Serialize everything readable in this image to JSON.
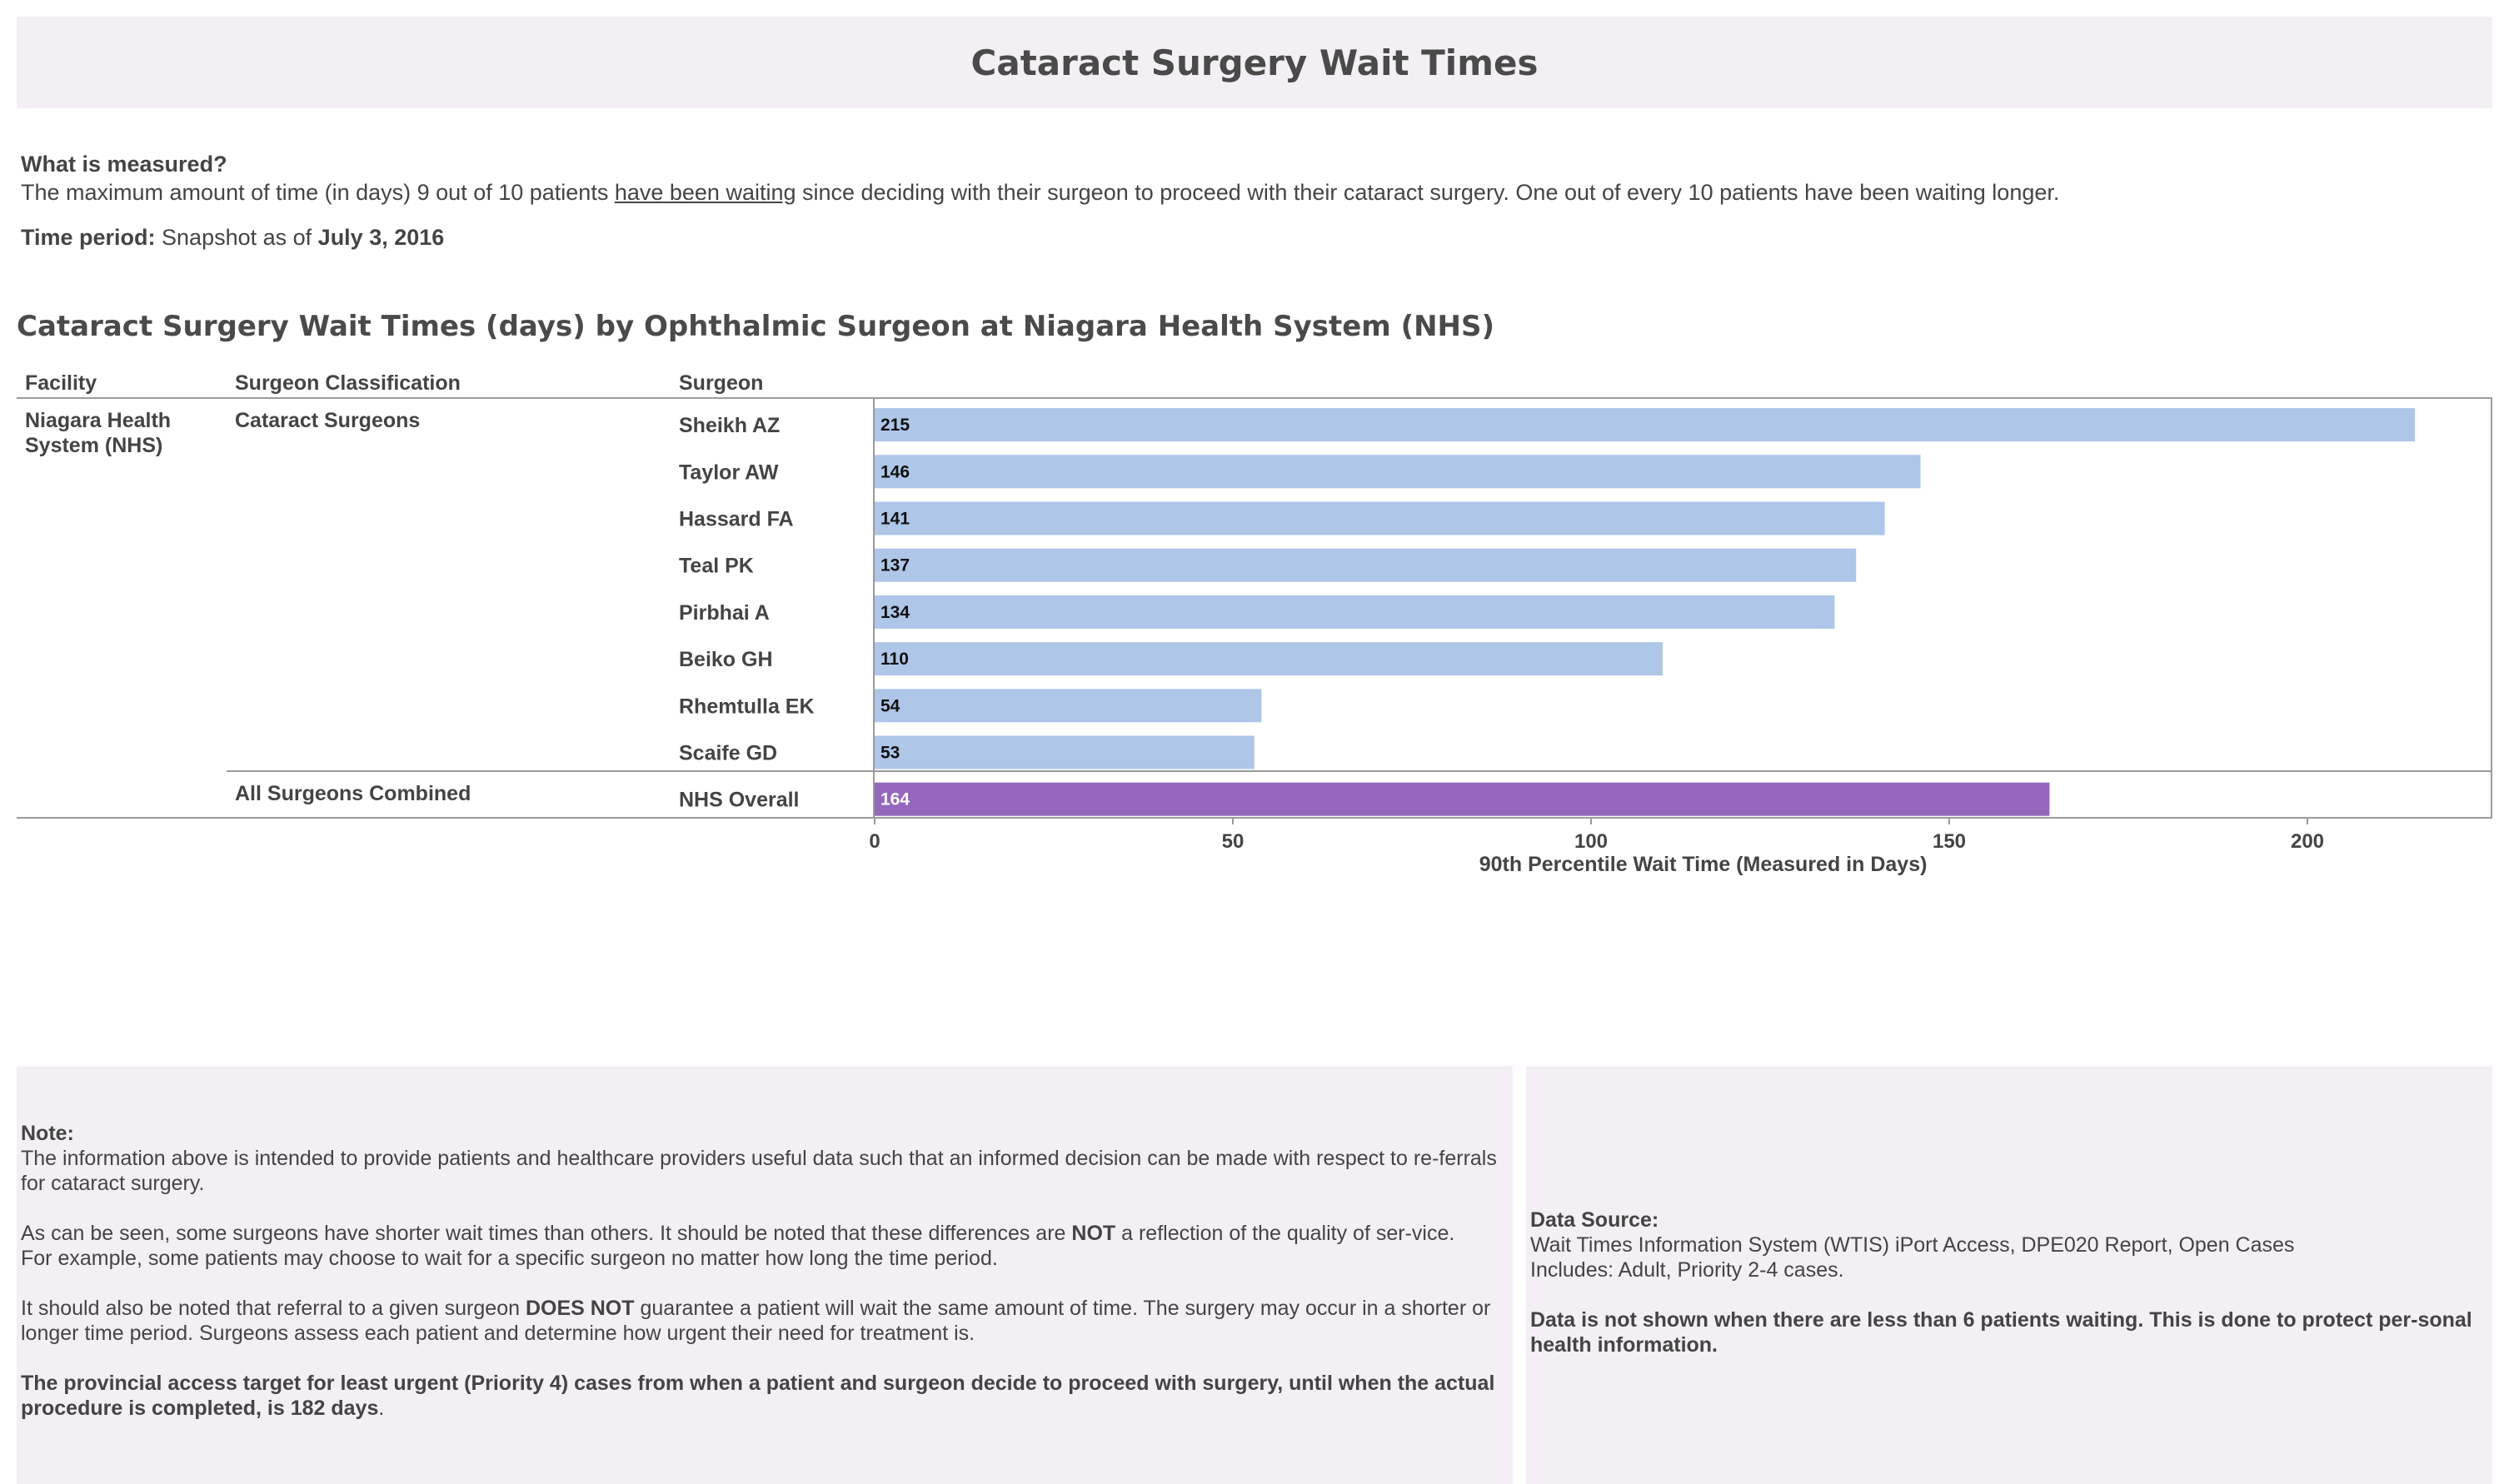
{
  "title": "Cataract Surgery Wait Times",
  "what_measured": {
    "heading": "What is measured?",
    "text_before": "The maximum amount of time (in days) 9 out of 10 patients ",
    "text_underlined": "have been waiting",
    "text_after": " since deciding with their surgeon to proceed with their cataract surgery. One out of every 10 patients have been waiting longer."
  },
  "time_period": {
    "label": "Time period:",
    "text": " Snapshot as of ",
    "date": "July 3, 2016"
  },
  "chart_heading": "Cataract Surgery Wait Times (days) by Ophthalmic Surgeon at Niagara Health System (NHS)",
  "columns": {
    "facility": "Facility",
    "classification": "Surgeon Classification",
    "surgeon": "Surgeon"
  },
  "facility_name": "Niagara Health System (NHS)",
  "groups": {
    "cataract": "Cataract Surgeons",
    "combined": "All Surgeons Combined"
  },
  "colors": {
    "surgeon_bar": "#aec6e8",
    "overall_bar": "#9467bd",
    "panel_bg": "#f3eff4"
  },
  "chart_data": {
    "type": "bar",
    "orientation": "horizontal",
    "categories": [
      "Sheikh AZ",
      "Taylor AW",
      "Hassard FA",
      "Teal PK",
      "Pirbhai A",
      "Beiko GH",
      "Rhemtulla EK",
      "Scaife GD",
      "NHS Overall"
    ],
    "values": [
      215,
      146,
      141,
      137,
      134,
      110,
      54,
      53,
      164
    ],
    "xlabel": "90th Percentile Wait Time (Measured in Days)",
    "ylabel": "",
    "xlim": [
      0,
      222
    ],
    "ticks": [
      0,
      50,
      100,
      150,
      200
    ],
    "grid": false
  },
  "note": {
    "heading": "Note:",
    "p1": "The information above is intended to provide patients and healthcare providers useful data such that an informed decision can be made with respect to re-ferrals for cataract surgery.",
    "p2_before": "As can be seen, some surgeons have shorter wait times than others. It should be noted that these differences are ",
    "p2_bold": "NOT",
    "p2_after": " a reflection of the quality of ser-vice.",
    "p2_line2": "For example, some patients may choose to wait for a specific surgeon no matter how long the time period.",
    "p3_before": "It should also be noted that referral to a given surgeon ",
    "p3_bold": "DOES NOT",
    "p3_after": " guarantee a patient will wait the same amount of time. The surgery may occur in a shorter or longer time period. Surgeons assess each patient and determine how urgent their need for treatment is.",
    "p4_bold": "The provincial access target for least urgent (Priority 4) cases from when a patient and surgeon decide to proceed with surgery, until when the actual procedure is completed, is 182 days",
    "p4_end": "."
  },
  "source": {
    "heading": "Data Source:",
    "line1": "Wait Times Information System (WTIS) iPort Access, DPE020 Report, Open Cases",
    "line2": "Includes: Adult, Priority 2-4 cases.",
    "privacy": "Data is not shown when there are less than 6 patients waiting. This is done to protect per-sonal health information."
  }
}
